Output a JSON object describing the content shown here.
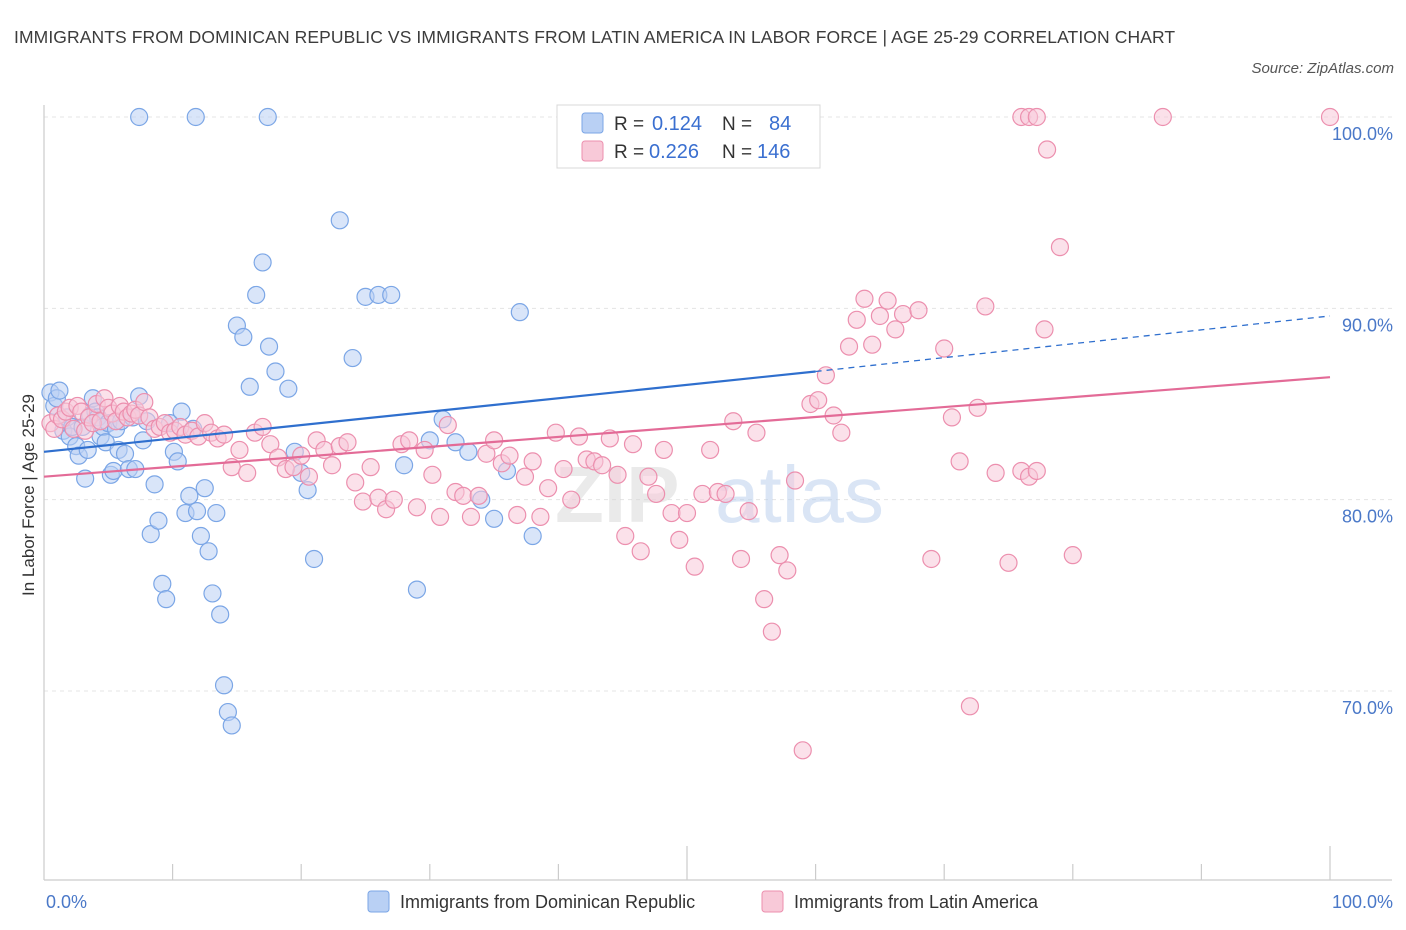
{
  "title": "IMMIGRANTS FROM DOMINICAN REPUBLIC VS IMMIGRANTS FROM LATIN AMERICA IN LABOR FORCE | AGE 25-29 CORRELATION CHART",
  "source": "Source: ZipAtlas.com",
  "watermark": {
    "zip": "ZIP",
    "atlas": "atlas"
  },
  "colors": {
    "blue": "#7ba6e6",
    "blue_fill": "#b9d0f4",
    "blue_line": "#2f6fce",
    "pink": "#ec8fae",
    "pink_fill": "#f8c9d8",
    "pink_line": "#e36b97",
    "axis_text": "#4a78c8"
  },
  "legend": {
    "r_label": "R =",
    "n_label": "N =",
    "rows": [
      {
        "r": "0.124",
        "n": "84"
      },
      {
        "r": "0.226",
        "n": "146"
      }
    ]
  },
  "chart_data": {
    "type": "scatter",
    "xlabel": "",
    "ylabel": "In Labor Force | Age 25-29",
    "xlim": [
      0,
      100
    ],
    "ylim": [
      60,
      100
    ],
    "x_tick_labels": [
      "0.0%",
      "100.0%"
    ],
    "y_ticks": [
      70,
      80,
      90,
      100
    ],
    "y_tick_labels": [
      "70.0%",
      "80.0%",
      "90.0%",
      "100.0%"
    ],
    "grid": true,
    "legend_position": "top-center",
    "series": [
      {
        "name": "Immigrants from Dominican Republic",
        "r": 0.124,
        "n": 84,
        "trend": {
          "x0": 0,
          "y0": 82.5,
          "x1": 60,
          "y1": 86.7,
          "dash_to_x": 100,
          "dash_to_y": 89.6
        },
        "points": [
          [
            0.5,
            85.6
          ],
          [
            0.8,
            84.9
          ],
          [
            1.0,
            85.3
          ],
          [
            1.2,
            85.7
          ],
          [
            1.5,
            83.6
          ],
          [
            1.8,
            84.3
          ],
          [
            2.0,
            83.3
          ],
          [
            2.2,
            83.8
          ],
          [
            2.5,
            82.8
          ],
          [
            2.7,
            82.3
          ],
          [
            3.0,
            83.8
          ],
          [
            3.2,
            81.1
          ],
          [
            3.4,
            82.6
          ],
          [
            3.6,
            84.4
          ],
          [
            3.8,
            85.3
          ],
          [
            4.0,
            84.6
          ],
          [
            4.2,
            84.3
          ],
          [
            4.4,
            83.3
          ],
          [
            4.6,
            83.8
          ],
          [
            4.8,
            83.0
          ],
          [
            5.0,
            84.0
          ],
          [
            5.2,
            81.3
          ],
          [
            5.4,
            81.5
          ],
          [
            5.6,
            83.7
          ],
          [
            5.8,
            82.6
          ],
          [
            6.0,
            84.1
          ],
          [
            6.3,
            82.4
          ],
          [
            6.6,
            81.6
          ],
          [
            6.9,
            84.3
          ],
          [
            7.1,
            81.6
          ],
          [
            7.4,
            85.4
          ],
          [
            7.7,
            83.1
          ],
          [
            8.0,
            84.1
          ],
          [
            8.3,
            78.2
          ],
          [
            8.6,
            80.8
          ],
          [
            8.9,
            78.9
          ],
          [
            9.2,
            75.6
          ],
          [
            9.5,
            74.8
          ],
          [
            9.8,
            84.0
          ],
          [
            10.1,
            82.5
          ],
          [
            10.4,
            82.0
          ],
          [
            10.7,
            84.6
          ],
          [
            11.0,
            79.3
          ],
          [
            11.3,
            80.2
          ],
          [
            11.6,
            83.7
          ],
          [
            11.9,
            79.4
          ],
          [
            12.2,
            78.1
          ],
          [
            12.5,
            80.6
          ],
          [
            12.8,
            77.3
          ],
          [
            13.1,
            75.1
          ],
          [
            13.4,
            79.3
          ],
          [
            13.7,
            74.0
          ],
          [
            14.0,
            70.3
          ],
          [
            14.3,
            68.9
          ],
          [
            14.6,
            68.2
          ],
          [
            15.0,
            89.1
          ],
          [
            15.5,
            88.5
          ],
          [
            16.0,
            85.9
          ],
          [
            16.5,
            90.7
          ],
          [
            17.0,
            92.4
          ],
          [
            17.5,
            88.0
          ],
          [
            18.0,
            86.7
          ],
          [
            19.0,
            85.8
          ],
          [
            19.5,
            82.5
          ],
          [
            20.0,
            81.4
          ],
          [
            20.5,
            80.5
          ],
          [
            21.0,
            76.9
          ],
          [
            23.0,
            94.6
          ],
          [
            24.0,
            87.4
          ],
          [
            25.0,
            90.6
          ],
          [
            26.0,
            90.7
          ],
          [
            27.0,
            90.7
          ],
          [
            28.0,
            81.8
          ],
          [
            29.0,
            75.3
          ],
          [
            30.0,
            83.1
          ],
          [
            31.0,
            84.2
          ],
          [
            32.0,
            83.0
          ],
          [
            33.0,
            82.5
          ],
          [
            34.0,
            80.0
          ],
          [
            35.0,
            79.0
          ],
          [
            36.0,
            81.5
          ],
          [
            37.0,
            89.8
          ],
          [
            38.0,
            78.1
          ],
          [
            7.4,
            100.0
          ],
          [
            11.8,
            100.0
          ],
          [
            17.4,
            100.0
          ],
          [
            52.5,
            100.0
          ]
        ]
      },
      {
        "name": "Immigrants from Latin America",
        "r": 0.226,
        "n": 146,
        "trend": {
          "x0": 0,
          "y0": 81.2,
          "x1": 100,
          "y1": 86.4
        },
        "points": [
          [
            0.5,
            84.0
          ],
          [
            0.8,
            83.7
          ],
          [
            1.1,
            84.4
          ],
          [
            1.4,
            84.2
          ],
          [
            1.7,
            84.6
          ],
          [
            2.0,
            84.8
          ],
          [
            2.3,
            83.7
          ],
          [
            2.6,
            84.9
          ],
          [
            2.9,
            84.6
          ],
          [
            3.2,
            83.6
          ],
          [
            3.5,
            84.3
          ],
          [
            3.8,
            84.0
          ],
          [
            4.1,
            85.0
          ],
          [
            4.4,
            84.1
          ],
          [
            4.7,
            85.3
          ],
          [
            5.0,
            84.8
          ],
          [
            5.3,
            84.5
          ],
          [
            5.6,
            84.1
          ],
          [
            5.9,
            84.9
          ],
          [
            6.2,
            84.6
          ],
          [
            6.5,
            84.3
          ],
          [
            6.8,
            84.5
          ],
          [
            7.1,
            84.7
          ],
          [
            7.4,
            84.4
          ],
          [
            7.8,
            85.1
          ],
          [
            8.2,
            84.3
          ],
          [
            8.6,
            83.7
          ],
          [
            9.0,
            83.8
          ],
          [
            9.4,
            84.0
          ],
          [
            9.8,
            83.5
          ],
          [
            10.2,
            83.6
          ],
          [
            10.6,
            83.8
          ],
          [
            11.0,
            83.4
          ],
          [
            11.5,
            83.6
          ],
          [
            12.0,
            83.3
          ],
          [
            12.5,
            84.0
          ],
          [
            13.0,
            83.5
          ],
          [
            13.5,
            83.2
          ],
          [
            14.0,
            83.4
          ],
          [
            14.6,
            81.7
          ],
          [
            15.2,
            82.6
          ],
          [
            15.8,
            81.4
          ],
          [
            16.4,
            83.5
          ],
          [
            17.0,
            83.8
          ],
          [
            17.6,
            82.9
          ],
          [
            18.2,
            82.2
          ],
          [
            18.8,
            81.6
          ],
          [
            19.4,
            81.7
          ],
          [
            20.0,
            82.3
          ],
          [
            20.6,
            81.2
          ],
          [
            21.2,
            83.1
          ],
          [
            21.8,
            82.6
          ],
          [
            22.4,
            81.8
          ],
          [
            23.0,
            82.8
          ],
          [
            23.6,
            83.0
          ],
          [
            24.2,
            80.9
          ],
          [
            24.8,
            79.9
          ],
          [
            25.4,
            81.7
          ],
          [
            26.0,
            80.1
          ],
          [
            26.6,
            79.5
          ],
          [
            27.2,
            80.0
          ],
          [
            27.8,
            82.9
          ],
          [
            28.4,
            83.1
          ],
          [
            29.0,
            79.6
          ],
          [
            29.6,
            82.6
          ],
          [
            30.2,
            81.3
          ],
          [
            30.8,
            79.1
          ],
          [
            31.4,
            83.9
          ],
          [
            32.0,
            80.4
          ],
          [
            32.6,
            80.2
          ],
          [
            33.2,
            79.1
          ],
          [
            33.8,
            80.2
          ],
          [
            34.4,
            82.4
          ],
          [
            35.0,
            83.1
          ],
          [
            35.6,
            81.9
          ],
          [
            36.2,
            82.3
          ],
          [
            36.8,
            79.2
          ],
          [
            37.4,
            81.2
          ],
          [
            38.0,
            82.0
          ],
          [
            38.6,
            79.1
          ],
          [
            39.2,
            80.6
          ],
          [
            39.8,
            83.5
          ],
          [
            40.4,
            81.6
          ],
          [
            41.0,
            80.0
          ],
          [
            41.6,
            83.3
          ],
          [
            42.2,
            82.1
          ],
          [
            42.8,
            82.0
          ],
          [
            43.4,
            81.8
          ],
          [
            44.0,
            83.2
          ],
          [
            44.6,
            81.3
          ],
          [
            45.2,
            78.1
          ],
          [
            45.8,
            82.9
          ],
          [
            46.4,
            77.3
          ],
          [
            47.0,
            81.2
          ],
          [
            47.6,
            80.3
          ],
          [
            48.2,
            82.6
          ],
          [
            48.8,
            79.3
          ],
          [
            49.4,
            77.9
          ],
          [
            50.0,
            79.3
          ],
          [
            50.6,
            76.5
          ],
          [
            51.2,
            80.3
          ],
          [
            51.8,
            82.6
          ],
          [
            52.4,
            80.4
          ],
          [
            53.0,
            80.3
          ],
          [
            53.6,
            84.1
          ],
          [
            54.2,
            76.9
          ],
          [
            54.8,
            79.4
          ],
          [
            55.4,
            83.5
          ],
          [
            56.0,
            74.8
          ],
          [
            56.6,
            73.1
          ],
          [
            57.2,
            77.1
          ],
          [
            57.8,
            76.3
          ],
          [
            58.4,
            81.0
          ],
          [
            59.0,
            66.9
          ],
          [
            59.6,
            85.0
          ],
          [
            60.2,
            85.2
          ],
          [
            60.8,
            86.5
          ],
          [
            61.4,
            84.4
          ],
          [
            62.0,
            83.5
          ],
          [
            62.6,
            88.0
          ],
          [
            63.2,
            89.4
          ],
          [
            63.8,
            90.5
          ],
          [
            64.4,
            88.1
          ],
          [
            65.0,
            89.6
          ],
          [
            65.6,
            90.4
          ],
          [
            66.2,
            88.9
          ],
          [
            66.8,
            89.7
          ],
          [
            68.0,
            89.9
          ],
          [
            69.0,
            76.9
          ],
          [
            70.0,
            87.9
          ],
          [
            70.6,
            84.3
          ],
          [
            71.2,
            82.0
          ],
          [
            72.0,
            69.2
          ],
          [
            72.6,
            84.8
          ],
          [
            73.2,
            90.1
          ],
          [
            74.0,
            81.4
          ],
          [
            75.0,
            76.7
          ],
          [
            76.0,
            81.5
          ],
          [
            76.6,
            81.2
          ],
          [
            77.2,
            81.5
          ],
          [
            77.8,
            88.9
          ],
          [
            79.0,
            93.2
          ],
          [
            80.0,
            77.1
          ],
          [
            76.0,
            100.0
          ],
          [
            76.6,
            100.0
          ],
          [
            77.2,
            100.0
          ],
          [
            78.0,
            98.3
          ],
          [
            87.0,
            100.0
          ],
          [
            100.0,
            100.0
          ]
        ]
      }
    ]
  },
  "bottom_legend": [
    {
      "label": "Immigrants from Dominican Republic"
    },
    {
      "label": "Immigrants from Latin America"
    }
  ]
}
